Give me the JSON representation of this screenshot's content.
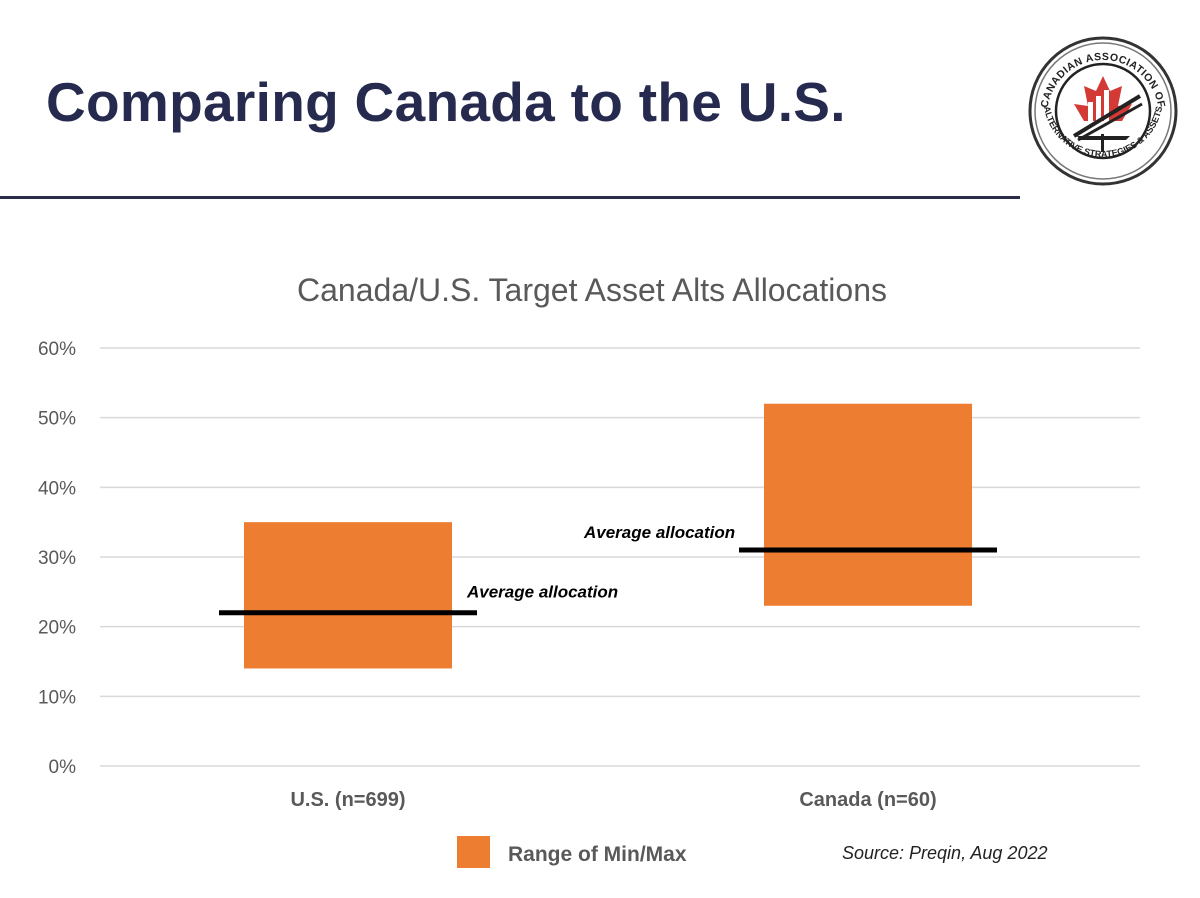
{
  "slide": {
    "title": "Comparing Canada to the U.S.",
    "logo": {
      "top_text": "CANADIAN ASSOCIATION OF",
      "bottom_text": "ALTERNATIVE STRATEGIES & ASSETS",
      "icon": "maple-leaf-bar-chart-logo"
    },
    "source": "Source: Preqin, Aug 2022"
  },
  "chart_data": {
    "type": "bar",
    "subtype": "floating-range",
    "title": "Canada/U.S. Target Asset Alts Allocations",
    "xlabel": "",
    "ylabel": "",
    "ylim": [
      0,
      60
    ],
    "yticks": [
      0,
      10,
      20,
      30,
      40,
      50,
      60
    ],
    "ytick_labels": [
      "0%",
      "10%",
      "20%",
      "30%",
      "40%",
      "50%",
      "60%"
    ],
    "grid": true,
    "categories": [
      "U.S. (n=699)",
      "Canada (n=60)"
    ],
    "series": [
      {
        "name": "Range of Min/Max",
        "color": "#ed7d31",
        "min": [
          14,
          23
        ],
        "max": [
          35,
          52
        ]
      }
    ],
    "average": {
      "label": "Average allocation",
      "values": [
        22,
        31
      ],
      "color": "#000000"
    },
    "legend": {
      "position": "bottom",
      "entries": [
        "Range of Min/Max"
      ]
    }
  }
}
